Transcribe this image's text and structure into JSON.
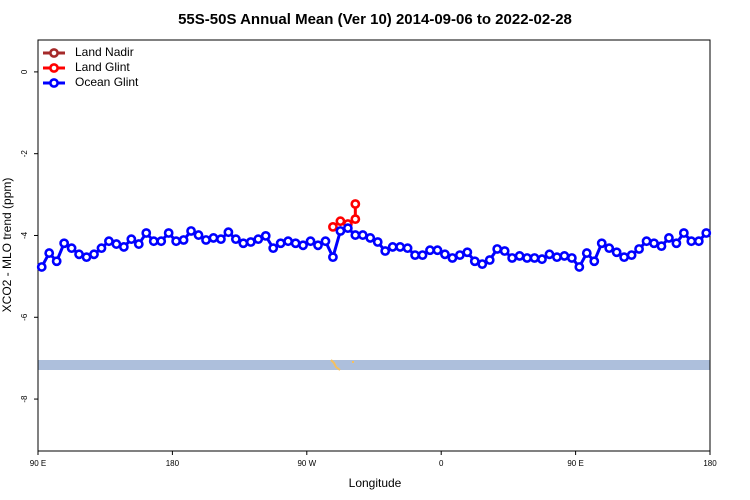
{
  "chart_data": {
    "type": "line",
    "title": "55S-50S Annual Mean (Ver 10)   2014-09-06 to 2022-02-28",
    "xlabel": "Longitude",
    "ylabel": "XCO2 - MLO trend (ppm)",
    "xlim": [
      90,
      540
    ],
    "ylim": [
      0.78,
      -9.27
    ],
    "xticks": [
      {
        "value": 90,
        "label": "90 E"
      },
      180,
      {
        "value": 270,
        "label": "90 W"
      },
      {
        "value": 360,
        "label": "0"
      },
      {
        "value": 450,
        "label": "90 E"
      },
      {
        "value": 540,
        "label": "180"
      }
    ],
    "yticks": [
      0,
      -2,
      -4,
      -6,
      -8
    ],
    "legend": "top-left",
    "series": [
      {
        "name": "Land Nadir",
        "color": "#a52a2a",
        "x": [],
        "values": []
      },
      {
        "name": "Land Glint",
        "color": "#ff0000",
        "x": [
          287.5,
          292.5,
          297.5,
          302.5,
          302.5
        ],
        "values": [
          -3.79,
          -3.65,
          -3.72,
          -3.6,
          -3.23
        ]
      },
      {
        "name": "Ocean Glint",
        "color": "#0000ff",
        "x": [
          92.5,
          97.5,
          102.5,
          107.5,
          112.5,
          117.5,
          122.5,
          127.5,
          132.5,
          137.5,
          142.5,
          147.5,
          152.5,
          157.5,
          162.5,
          167.5,
          172.5,
          177.5,
          182.5,
          187.5,
          192.5,
          197.5,
          202.5,
          207.5,
          212.5,
          217.5,
          222.5,
          227.5,
          232.5,
          237.5,
          242.5,
          247.5,
          252.5,
          257.5,
          262.5,
          267.5,
          272.5,
          277.5,
          282.5,
          287.5,
          292.5,
          297.5,
          302.5,
          307.5,
          312.5,
          317.5,
          322.5,
          327.5,
          332.5,
          337.5,
          342.5,
          347.5,
          352.5,
          357.5,
          362.5,
          367.5,
          372.5,
          377.5,
          382.5,
          387.5,
          392.5,
          397.5,
          402.5,
          407.5,
          412.5,
          417.5,
          422.5,
          427.5,
          432.5,
          437.5,
          442.5,
          447.5,
          452.5,
          457.5,
          462.5,
          467.5,
          472.5,
          477.5,
          482.5,
          487.5,
          492.5,
          497.5,
          502.5,
          507.5,
          512.5,
          517.5,
          522.5,
          527.5,
          532.5,
          537.5
        ],
        "values": [
          -4.77,
          -4.43,
          -4.63,
          -4.19,
          -4.31,
          -4.46,
          -4.53,
          -4.46,
          -4.31,
          -4.14,
          -4.21,
          -4.28,
          -4.09,
          -4.21,
          -3.94,
          -4.14,
          -4.14,
          -3.94,
          -4.14,
          -4.11,
          -3.89,
          -3.99,
          -4.11,
          -4.06,
          -4.09,
          -3.92,
          -4.09,
          -4.19,
          -4.16,
          -4.09,
          -4.01,
          -4.31,
          -4.19,
          -4.14,
          -4.19,
          -4.24,
          -4.14,
          -4.24,
          -4.14,
          -4.53,
          -3.89,
          -3.82,
          -3.99,
          -3.99,
          -4.06,
          -4.16,
          -4.38,
          -4.28,
          -4.28,
          -4.31,
          -4.48,
          -4.48,
          -4.36,
          -4.36,
          -4.46,
          -4.55,
          -4.48,
          -4.41,
          -4.63,
          -4.7,
          -4.6,
          -4.33,
          -4.38,
          -4.55,
          -4.5,
          -4.55,
          -4.55,
          -4.58,
          -4.46,
          -4.53,
          -4.5,
          -4.55,
          -4.77,
          -4.43,
          -4.63,
          -4.19,
          -4.31,
          -4.41,
          -4.53,
          -4.48,
          -4.33,
          -4.14,
          -4.19,
          -4.26,
          -4.06,
          -4.19,
          -3.94,
          -4.14,
          -4.14,
          -3.94
        ]
      }
    ]
  }
}
